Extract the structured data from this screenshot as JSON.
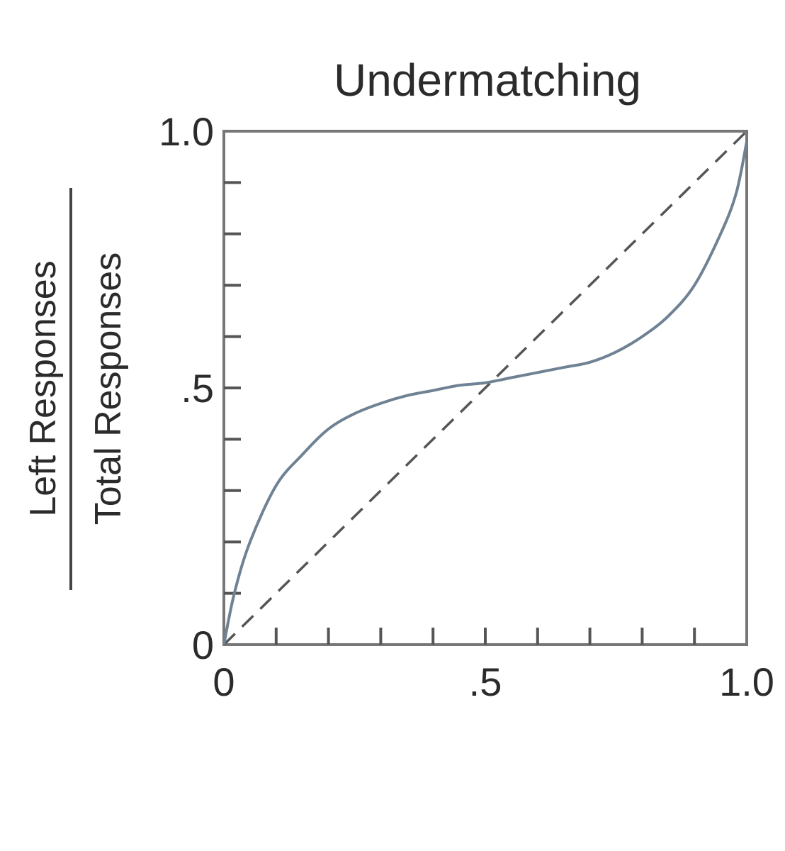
{
  "chart_data": {
    "type": "line",
    "title": "Undermatching",
    "ylabel_numerator": "Left Responses",
    "ylabel_denominator": "Total Responses",
    "xlim": [
      0,
      1
    ],
    "ylim": [
      0,
      1
    ],
    "x_tick_labels": [
      {
        "value": 0,
        "label": "0"
      },
      {
        "value": 0.5,
        "label": ".5"
      },
      {
        "value": 1,
        "label": "1.0"
      }
    ],
    "y_tick_labels": [
      {
        "value": 0,
        "label": "0"
      },
      {
        "value": 0.5,
        "label": ".5"
      },
      {
        "value": 1,
        "label": "1.0"
      }
    ],
    "minor_tick_step": 0.1,
    "grid": false,
    "series": [
      {
        "style": "solid",
        "color": "#6f8294",
        "x": [
          0,
          0.02,
          0.05,
          0.1,
          0.15,
          0.2,
          0.25,
          0.3,
          0.35,
          0.4,
          0.45,
          0.5,
          0.55,
          0.6,
          0.65,
          0.7,
          0.75,
          0.8,
          0.85,
          0.9,
          0.95,
          0.98,
          1.0
        ],
        "y": [
          0,
          0.1,
          0.2,
          0.31,
          0.37,
          0.42,
          0.45,
          0.47,
          0.485,
          0.495,
          0.505,
          0.51,
          0.52,
          0.53,
          0.54,
          0.55,
          0.57,
          0.6,
          0.64,
          0.7,
          0.8,
          0.88,
          0.98
        ]
      },
      {
        "style": "dashed",
        "color": "#555555",
        "x": [
          0,
          1
        ],
        "y": [
          0,
          1
        ]
      }
    ]
  }
}
